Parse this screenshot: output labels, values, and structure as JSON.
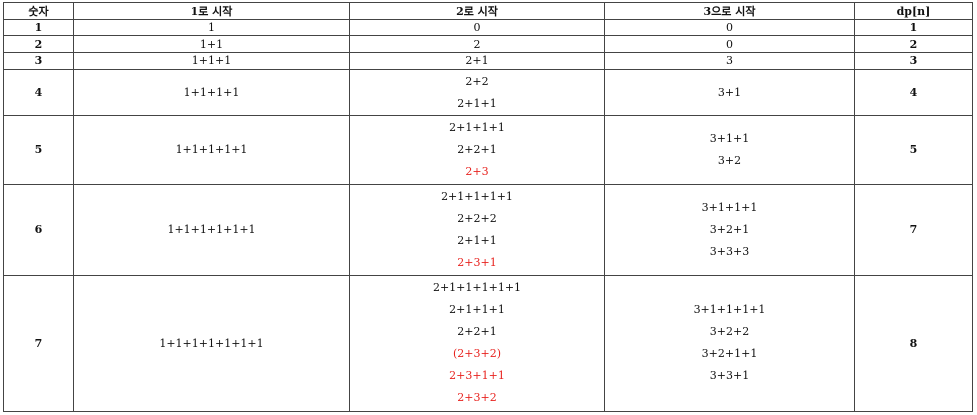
{
  "table": {
    "headers": [
      "숫자",
      "1로 시작",
      "2로 시작",
      "3으로 시작",
      "dp[n]"
    ],
    "accent_red": "#e8231f",
    "rows": [
      {
        "num": "1",
        "one": "1",
        "two": [
          {
            "t": "0"
          }
        ],
        "three": [
          "0"
        ],
        "dp": "1"
      },
      {
        "num": "2",
        "one": "1+1",
        "two": [
          {
            "t": "2"
          }
        ],
        "three": [
          "0"
        ],
        "dp": "2"
      },
      {
        "num": "3",
        "one": "1+1+1",
        "two": [
          {
            "t": "2+1"
          }
        ],
        "three": [
          "3"
        ],
        "dp": "3"
      },
      {
        "num": "4",
        "one": "1+1+1+1",
        "two": [
          {
            "t": "2+2"
          },
          {
            "t": "2+1+1"
          }
        ],
        "three": [
          "3+1"
        ],
        "dp": "4"
      },
      {
        "num": "5",
        "one": "1+1+1+1+1",
        "two": [
          {
            "t": "2+1+1+1"
          },
          {
            "t": "2+2+1"
          },
          {
            "t": "2+3",
            "red": true
          }
        ],
        "three": [
          "3+1+1",
          "3+2"
        ],
        "dp": "5"
      },
      {
        "num": "6",
        "one": "1+1+1+1+1+1",
        "two": [
          {
            "t": "2+1+1+1+1"
          },
          {
            "t": "2+2+2"
          },
          {
            "t": "2+1+1"
          },
          {
            "t": "2+3+1",
            "red": true
          }
        ],
        "three": [
          "3+1+1+1",
          "3+2+1",
          "3+3+3"
        ],
        "dp": "7"
      },
      {
        "num": "7",
        "one": "1+1+1+1+1+1+1",
        "two": [
          {
            "t": "2+1+1+1+1+1"
          },
          {
            "t": "2+1+1+1"
          },
          {
            "t": "2+2+1"
          },
          {
            "t": "(2+3+2)",
            "red": true
          },
          {
            "t": "2+3+1+1",
            "red": true
          },
          {
            "t": "2+3+2",
            "red": true
          }
        ],
        "three": [
          "3+1+1+1+1",
          "3+2+2",
          "3+2+1+1",
          "3+3+1"
        ],
        "dp": "8"
      }
    ]
  }
}
